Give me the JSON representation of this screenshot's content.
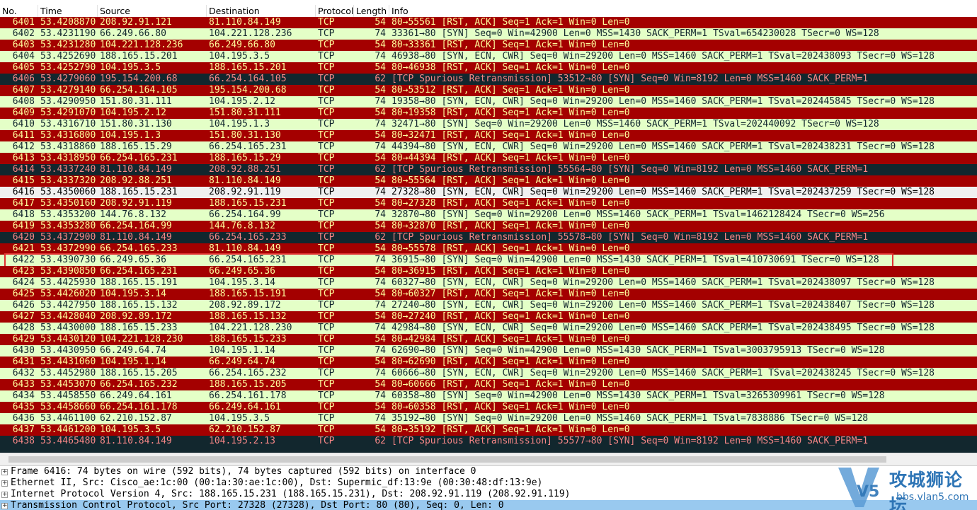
{
  "columns": [
    "No.",
    "Time",
    "Source",
    "Destination",
    "Protocol",
    "Length",
    "Info"
  ],
  "rows": [
    {
      "cells": [
        6401,
        "53.4208870",
        "208.92.91.121",
        "81.110.84.149",
        "TCP",
        54,
        "80→55561 [RST, ACK] Seq=1 Ack=1 Win=0 Len=0"
      ],
      "bg": "#a40000",
      "fg": "#fffc9c"
    },
    {
      "cells": [
        6402,
        "53.4231190",
        "66.249.66.80",
        "104.221.128.236",
        "TCP",
        74,
        "33361→80 [SYN] Seq=0 Win=42900 Len=0 MSS=1430 SACK_PERM=1 TSval=654230028 TSecr=0 WS=128"
      ],
      "bg": "#e4ffc7",
      "fg": "#12272e"
    },
    {
      "cells": [
        6403,
        "53.4231280",
        "104.221.128.236",
        "66.249.66.80",
        "TCP",
        54,
        "80→33361 [RST, ACK] Seq=1 Ack=1 Win=0 Len=0"
      ],
      "bg": "#a40000",
      "fg": "#fffc9c"
    },
    {
      "cells": [
        6404,
        "53.4252690",
        "188.165.15.201",
        "104.195.3.5",
        "TCP",
        74,
        "46938→80 [SYN, ECN, CWR] Seq=0 Win=29200 Len=0 MSS=1460 SACK_PERM=1 TSval=202438093 TSecr=0 WS=128"
      ],
      "bg": "#e4ffc7",
      "fg": "#12272e"
    },
    {
      "cells": [
        6405,
        "53.4252790",
        "104.195.3.5",
        "188.165.15.201",
        "TCP",
        54,
        "80→46938 [RST, ACK] Seq=1 Ack=1 Win=0 Len=0"
      ],
      "bg": "#a40000",
      "fg": "#fffc9c"
    },
    {
      "cells": [
        6406,
        "53.4279060",
        "195.154.200.68",
        "66.254.164.105",
        "TCP",
        62,
        "[TCP Spurious Retransmission] 53512→80 [SYN] Seq=0 Win=8192 Len=0 MSS=1460 SACK_PERM=1"
      ],
      "bg": "#12272e",
      "fg": "#f78787"
    },
    {
      "cells": [
        6407,
        "53.4279140",
        "66.254.164.105",
        "195.154.200.68",
        "TCP",
        54,
        "80→53512 [RST, ACK] Seq=1 Ack=1 Win=0 Len=0"
      ],
      "bg": "#a40000",
      "fg": "#fffc9c"
    },
    {
      "cells": [
        6408,
        "53.4290950",
        "151.80.31.111",
        "104.195.2.12",
        "TCP",
        74,
        "19358→80 [SYN, ECN, CWR] Seq=0 Win=29200 Len=0 MSS=1460 SACK_PERM=1 TSval=202445845 TSecr=0 WS=128"
      ],
      "bg": "#e4ffc7",
      "fg": "#12272e"
    },
    {
      "cells": [
        6409,
        "53.4291070",
        "104.195.2.12",
        "151.80.31.111",
        "TCP",
        54,
        "80→19358 [RST, ACK] Seq=1 Ack=1 Win=0 Len=0"
      ],
      "bg": "#a40000",
      "fg": "#fffc9c"
    },
    {
      "cells": [
        6410,
        "53.4316710",
        "151.80.31.130",
        "104.195.1.3",
        "TCP",
        74,
        "32471→80 [SYN] Seq=0 Win=29200 Len=0 MSS=1460 SACK_PERM=1 TSval=202440092 TSecr=0 WS=128"
      ],
      "bg": "#e4ffc7",
      "fg": "#12272e"
    },
    {
      "cells": [
        6411,
        "53.4316800",
        "104.195.1.3",
        "151.80.31.130",
        "TCP",
        54,
        "80→32471 [RST, ACK] Seq=1 Ack=1 Win=0 Len=0"
      ],
      "bg": "#a40000",
      "fg": "#fffc9c"
    },
    {
      "cells": [
        6412,
        "53.4318860",
        "188.165.15.29",
        "66.254.165.231",
        "TCP",
        74,
        "44394→80 [SYN, ECN, CWR] Seq=0 Win=29200 Len=0 MSS=1460 SACK_PERM=1 TSval=202438231 TSecr=0 WS=128"
      ],
      "bg": "#e4ffc7",
      "fg": "#12272e"
    },
    {
      "cells": [
        6413,
        "53.4318950",
        "66.254.165.231",
        "188.165.15.29",
        "TCP",
        54,
        "80→44394 [RST, ACK] Seq=1 Ack=1 Win=0 Len=0"
      ],
      "bg": "#a40000",
      "fg": "#fffc9c"
    },
    {
      "cells": [
        6414,
        "53.4337240",
        "81.110.84.149",
        "208.92.88.251",
        "TCP",
        62,
        "[TCP Spurious Retransmission] 55564→80 [SYN] Seq=0 Win=8192 Len=0 MSS=1460 SACK_PERM=1"
      ],
      "bg": "#12272e",
      "fg": "#f78787"
    },
    {
      "cells": [
        6415,
        "53.4337320",
        "208.92.88.251",
        "81.110.84.149",
        "TCP",
        54,
        "80→55564 [RST, ACK] Seq=1 Ack=1 Win=0 Len=0"
      ],
      "bg": "#a40000",
      "fg": "#fffc9c"
    },
    {
      "cells": [
        6416,
        "53.4350060",
        "188.165.15.231",
        "208.92.91.119",
        "TCP",
        74,
        "27328→80 [SYN, ECN, CWR] Seq=0 Win=29200 Len=0 MSS=1460 SACK_PERM=1 TSval=202437259 TSecr=0 WS=128"
      ],
      "bg": "#f0f0f0",
      "fg": "#000000"
    },
    {
      "cells": [
        6417,
        "53.4350160",
        "208.92.91.119",
        "188.165.15.231",
        "TCP",
        54,
        "80→27328 [RST, ACK] Seq=1 Ack=1 Win=0 Len=0"
      ],
      "bg": "#a40000",
      "fg": "#fffc9c"
    },
    {
      "cells": [
        6418,
        "53.4353200",
        "144.76.8.132",
        "66.254.164.99",
        "TCP",
        74,
        "32870→80 [SYN] Seq=0 Win=29200 Len=0 MSS=1460 SACK_PERM=1 TSval=1462128424 TSecr=0 WS=256"
      ],
      "bg": "#e4ffc7",
      "fg": "#12272e"
    },
    {
      "cells": [
        6419,
        "53.4353280",
        "66.254.164.99",
        "144.76.8.132",
        "TCP",
        54,
        "80→32870 [RST, ACK] Seq=1 Ack=1 Win=0 Len=0"
      ],
      "bg": "#a40000",
      "fg": "#fffc9c"
    },
    {
      "cells": [
        6420,
        "53.4372900",
        "81.110.84.149",
        "66.254.165.233",
        "TCP",
        62,
        "[TCP Spurious Retransmission] 55578→80 [SYN] Seq=0 Win=8192 Len=0 MSS=1460 SACK_PERM=1"
      ],
      "bg": "#12272e",
      "fg": "#f78787"
    },
    {
      "cells": [
        6421,
        "53.4372990",
        "66.254.165.233",
        "81.110.84.149",
        "TCP",
        54,
        "80→55578 [RST, ACK] Seq=1 Ack=1 Win=0 Len=0"
      ],
      "bg": "#a40000",
      "fg": "#fffc9c"
    },
    {
      "cells": [
        6422,
        "53.4390730",
        "66.249.65.36",
        "66.254.165.231",
        "TCP",
        74,
        "36915→80 [SYN] Seq=0 Win=42900 Len=0 MSS=1430 SACK_PERM=1 TSval=410730691 TSecr=0 WS=128"
      ],
      "bg": "#e4ffc7",
      "fg": "#12272e",
      "outlined": true
    },
    {
      "cells": [
        6423,
        "53.4390850",
        "66.254.165.231",
        "66.249.65.36",
        "TCP",
        54,
        "80→36915 [RST, ACK] Seq=1 Ack=1 Win=0 Len=0"
      ],
      "bg": "#a40000",
      "fg": "#fffc9c"
    },
    {
      "cells": [
        6424,
        "53.4425930",
        "188.165.15.191",
        "104.195.3.14",
        "TCP",
        74,
        "60327→80 [SYN, ECN, CWR] Seq=0 Win=29200 Len=0 MSS=1460 SACK_PERM=1 TSval=202438097 TSecr=0 WS=128"
      ],
      "bg": "#e4ffc7",
      "fg": "#12272e"
    },
    {
      "cells": [
        6425,
        "53.4426020",
        "104.195.3.14",
        "188.165.15.191",
        "TCP",
        54,
        "80→60327 [RST, ACK] Seq=1 Ack=1 Win=0 Len=0"
      ],
      "bg": "#a40000",
      "fg": "#fffc9c"
    },
    {
      "cells": [
        6426,
        "53.4427950",
        "188.165.15.132",
        "208.92.89.172",
        "TCP",
        74,
        "27240→80 [SYN, ECN, CWR] Seq=0 Win=29200 Len=0 MSS=1460 SACK_PERM=1 TSval=202438407 TSecr=0 WS=128"
      ],
      "bg": "#e4ffc7",
      "fg": "#12272e"
    },
    {
      "cells": [
        6427,
        "53.4428040",
        "208.92.89.172",
        "188.165.15.132",
        "TCP",
        54,
        "80→27240 [RST, ACK] Seq=1 Ack=1 Win=0 Len=0"
      ],
      "bg": "#a40000",
      "fg": "#fffc9c"
    },
    {
      "cells": [
        6428,
        "53.4430000",
        "188.165.15.233",
        "104.221.128.230",
        "TCP",
        74,
        "42984→80 [SYN, ECN, CWR] Seq=0 Win=29200 Len=0 MSS=1460 SACK_PERM=1 TSval=202438495 TSecr=0 WS=128"
      ],
      "bg": "#e4ffc7",
      "fg": "#12272e"
    },
    {
      "cells": [
        6429,
        "53.4430120",
        "104.221.128.230",
        "188.165.15.233",
        "TCP",
        54,
        "80→42984 [RST, ACK] Seq=1 Ack=1 Win=0 Len=0"
      ],
      "bg": "#a40000",
      "fg": "#fffc9c"
    },
    {
      "cells": [
        6430,
        "53.4430950",
        "66.249.64.74",
        "104.195.1.14",
        "TCP",
        74,
        "62690→80 [SYN] Seq=0 Win=42900 Len=0 MSS=1430 SACK_PERM=1 TSval=3003795913 TSecr=0 WS=128"
      ],
      "bg": "#e4ffc7",
      "fg": "#12272e"
    },
    {
      "cells": [
        6431,
        "53.4431060",
        "104.195.1.14",
        "66.249.64.74",
        "TCP",
        54,
        "80→62690 [RST, ACK] Seq=1 Ack=1 Win=0 Len=0"
      ],
      "bg": "#a40000",
      "fg": "#fffc9c"
    },
    {
      "cells": [
        6432,
        "53.4452980",
        "188.165.15.205",
        "66.254.165.232",
        "TCP",
        74,
        "60666→80 [SYN, ECN, CWR] Seq=0 Win=29200 Len=0 MSS=1460 SACK_PERM=1 TSval=202438245 TSecr=0 WS=128"
      ],
      "bg": "#e4ffc7",
      "fg": "#12272e"
    },
    {
      "cells": [
        6433,
        "53.4453070",
        "66.254.165.232",
        "188.165.15.205",
        "TCP",
        54,
        "80→60666 [RST, ACK] Seq=1 Ack=1 Win=0 Len=0"
      ],
      "bg": "#a40000",
      "fg": "#fffc9c"
    },
    {
      "cells": [
        6434,
        "53.4458550",
        "66.249.64.161",
        "66.254.161.178",
        "TCP",
        74,
        "60358→80 [SYN] Seq=0 Win=42900 Len=0 MSS=1430 SACK_PERM=1 TSval=3265309961 TSecr=0 WS=128"
      ],
      "bg": "#e4ffc7",
      "fg": "#12272e"
    },
    {
      "cells": [
        6435,
        "53.4458660",
        "66.254.161.178",
        "66.249.64.161",
        "TCP",
        54,
        "80→60358 [RST, ACK] Seq=1 Ack=1 Win=0 Len=0"
      ],
      "bg": "#a40000",
      "fg": "#fffc9c"
    },
    {
      "cells": [
        6436,
        "53.4461100",
        "62.210.152.87",
        "104.195.3.5",
        "TCP",
        74,
        "35192→80 [SYN] Seq=0 Win=29200 Len=0 MSS=1460 SACK_PERM=1 TSval=7838886 TSecr=0 WS=128"
      ],
      "bg": "#e4ffc7",
      "fg": "#12272e"
    },
    {
      "cells": [
        6437,
        "53.4461200",
        "104.195.3.5",
        "62.210.152.87",
        "TCP",
        54,
        "80→35192 [RST, ACK] Seq=1 Ack=1 Win=0 Len=0"
      ],
      "bg": "#a40000",
      "fg": "#fffc9c"
    },
    {
      "cells": [
        6438,
        "53.4465480",
        "81.110.84.149",
        "104.195.2.13",
        "TCP",
        62,
        "[TCP Spurious Retransmission] 55577→80 [SYN] Seq=0 Win=8192 Len=0 MSS=1460 SACK_PERM=1"
      ],
      "bg": "#12272e",
      "fg": "#f78787"
    }
  ],
  "details": [
    {
      "text": "Frame 6416: 74 bytes on wire (592 bits), 74 bytes captured (592 bits) on interface 0",
      "bg": "#ffffff"
    },
    {
      "text": "Ethernet II, Src: Cisco_ae:1c:00 (00:1a:30:ae:1c:00), Dst: Supermic_df:13:9e (00:30:48:df:13:9e)",
      "bg": "#ffffff"
    },
    {
      "text": "Internet Protocol Version 4, Src: 188.165.15.231 (188.165.15.231), Dst: 208.92.91.119 (208.92.91.119)",
      "bg": "#ffffff"
    },
    {
      "text": "Transmission Control Protocol, Src Port: 27328 (27328), Dst Port: 80 (80), Seq: 0, Len: 0",
      "bg": "#99c9ef"
    }
  ],
  "watermark": {
    "logo": "V5",
    "title": "攻城狮论坛",
    "url": "bbs.vlan5.com"
  }
}
